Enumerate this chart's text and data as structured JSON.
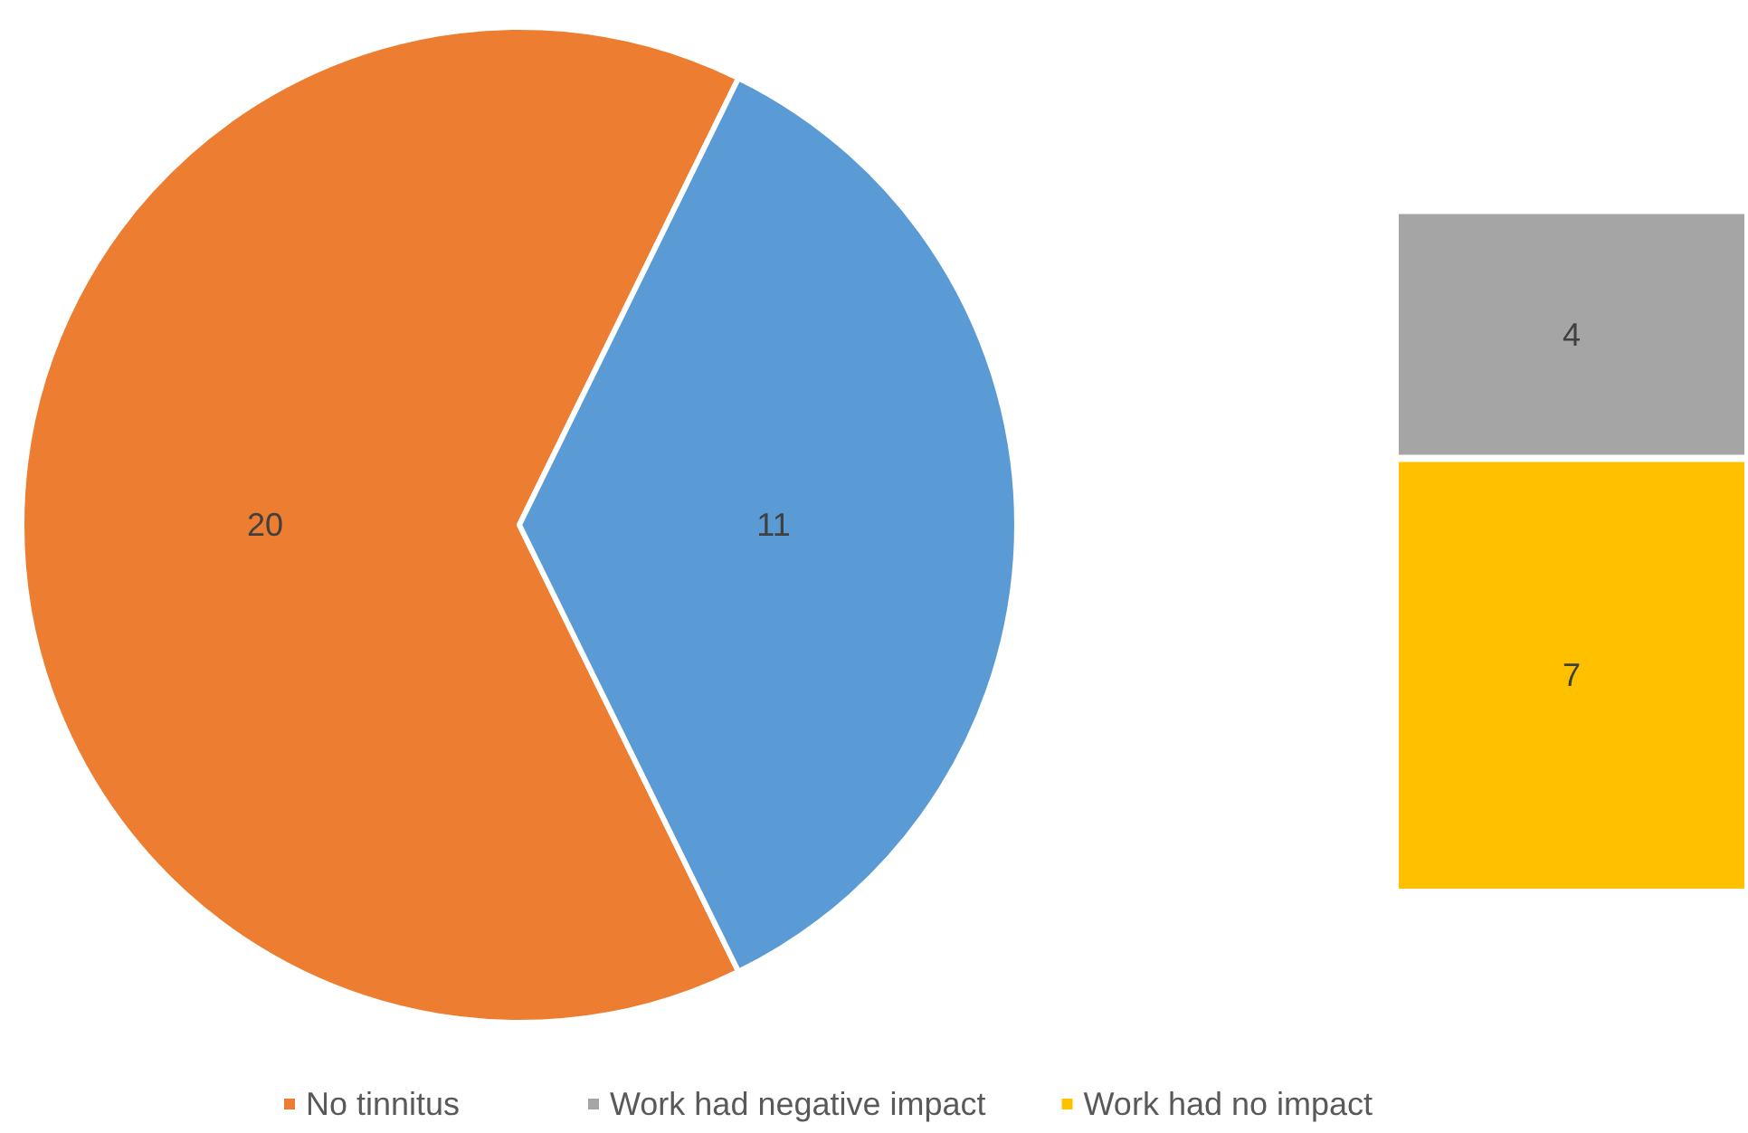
{
  "chart_data": [
    {
      "type": "pie",
      "categories": [
        "No tinnitus",
        null
      ],
      "values": [
        20,
        11
      ],
      "colors": [
        "#ed7d31",
        "#5b9bd5"
      ],
      "data_labels": true,
      "legend": "bottom"
    },
    {
      "type": "bar",
      "stacked": true,
      "categories": [
        null
      ],
      "data_labels": true,
      "legend": "bottom",
      "series": [
        {
          "name": "Work had no impact",
          "color": "#ffc000",
          "values": [
            7
          ]
        },
        {
          "name": "Work had negative impact",
          "color": "#a5a5a5",
          "values": [
            4
          ]
        }
      ]
    }
  ]
}
